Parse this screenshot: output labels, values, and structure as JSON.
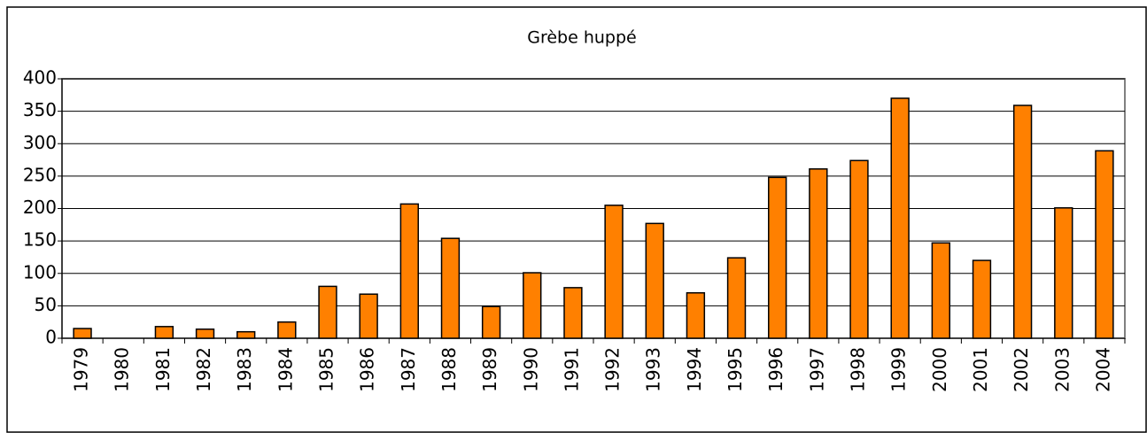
{
  "chart_data": {
    "type": "bar",
    "title": "Grèbe huppé",
    "categories": [
      "1979",
      "1980",
      "1981",
      "1982",
      "1983",
      "1984",
      "1985",
      "1986",
      "1987",
      "1988",
      "1989",
      "1990",
      "1991",
      "1992",
      "1993",
      "1994",
      "1995",
      "1996",
      "1997",
      "1998",
      "1999",
      "2000",
      "2001",
      "2002",
      "2003",
      "2004"
    ],
    "values": [
      15,
      0,
      18,
      14,
      10,
      25,
      80,
      68,
      207,
      154,
      49,
      101,
      78,
      205,
      177,
      70,
      124,
      248,
      261,
      274,
      370,
      147,
      120,
      359,
      201,
      289
    ],
    "color": "#ff8000",
    "ylim": [
      0,
      400
    ],
    "yticks": [
      0,
      50,
      100,
      150,
      200,
      250,
      300,
      350,
      400
    ],
    "grid": true
  }
}
